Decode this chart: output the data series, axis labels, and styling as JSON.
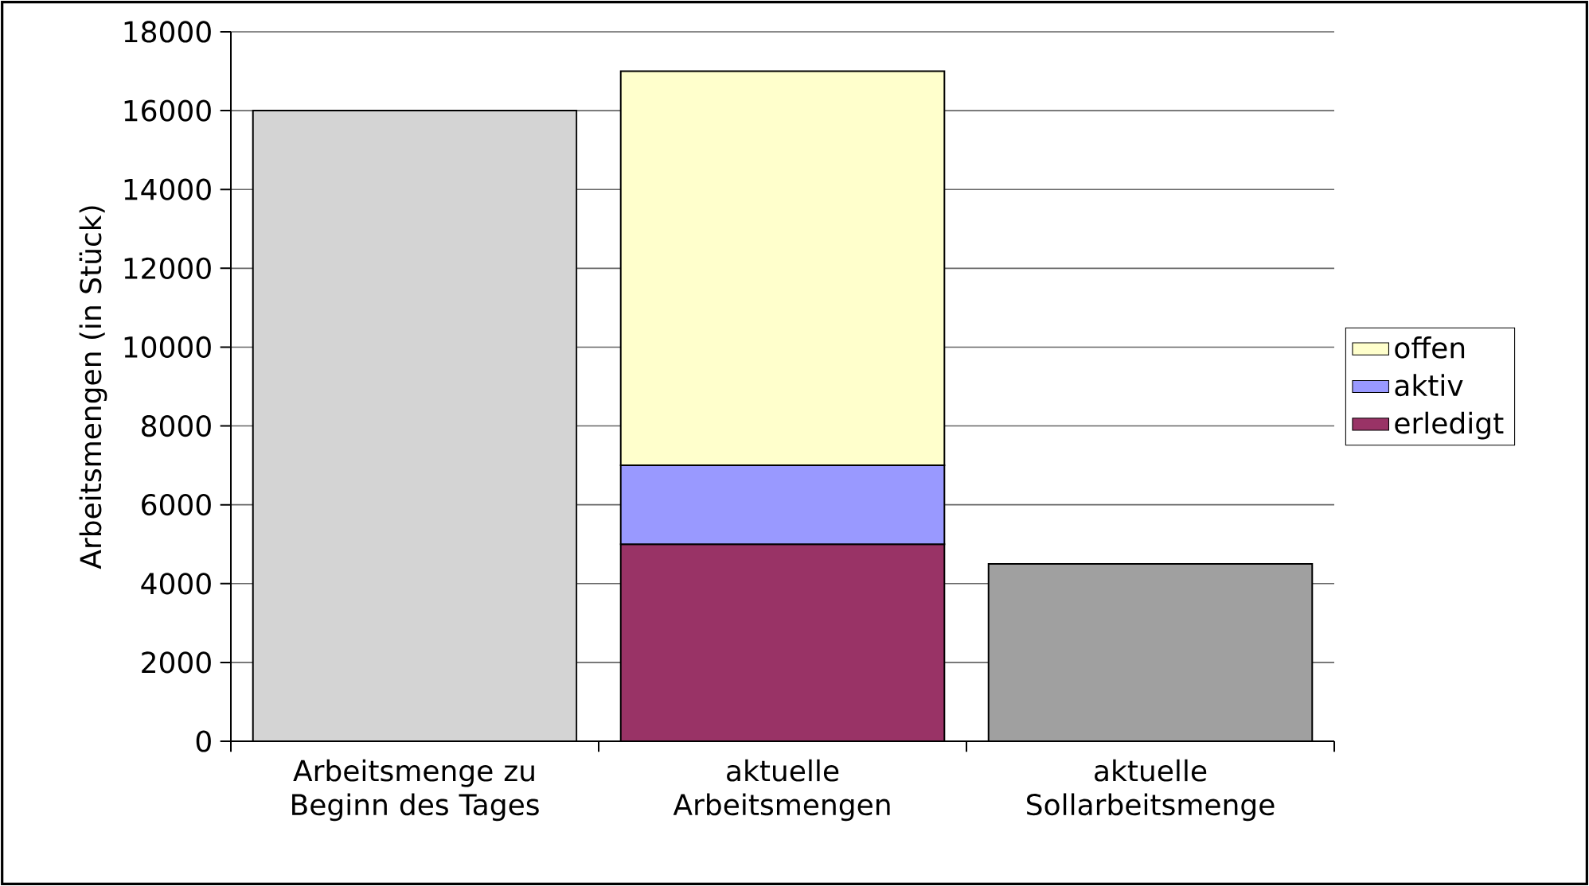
{
  "chart_data": {
    "type": "bar",
    "stacked": true,
    "ylabel": "Arbeitsmengen (in Stück)",
    "categories": [
      "Arbeitsmenge zu Beginn des Tages",
      "aktuelle Arbeitsmengen",
      "aktuelle Sollarbeitsmenge"
    ],
    "series": [
      {
        "colors": [
          "#d4d4d4",
          "#d4d4d4",
          "#a0a0a0"
        ],
        "values": [
          16000,
          null,
          4500
        ]
      },
      {
        "name": "erledigt",
        "color": "#993366",
        "values": [
          null,
          5000,
          null
        ]
      },
      {
        "name": "aktiv",
        "color": "#9999ff",
        "values": [
          null,
          2000,
          null
        ]
      },
      {
        "name": "offen",
        "color": "#ffffcc",
        "values": [
          null,
          10000,
          null
        ]
      }
    ],
    "ylim": [
      0,
      18000
    ],
    "yticks": [
      0,
      2000,
      4000,
      6000,
      8000,
      10000,
      12000,
      14000,
      16000,
      18000
    ],
    "grid": "y",
    "legend": "right"
  }
}
